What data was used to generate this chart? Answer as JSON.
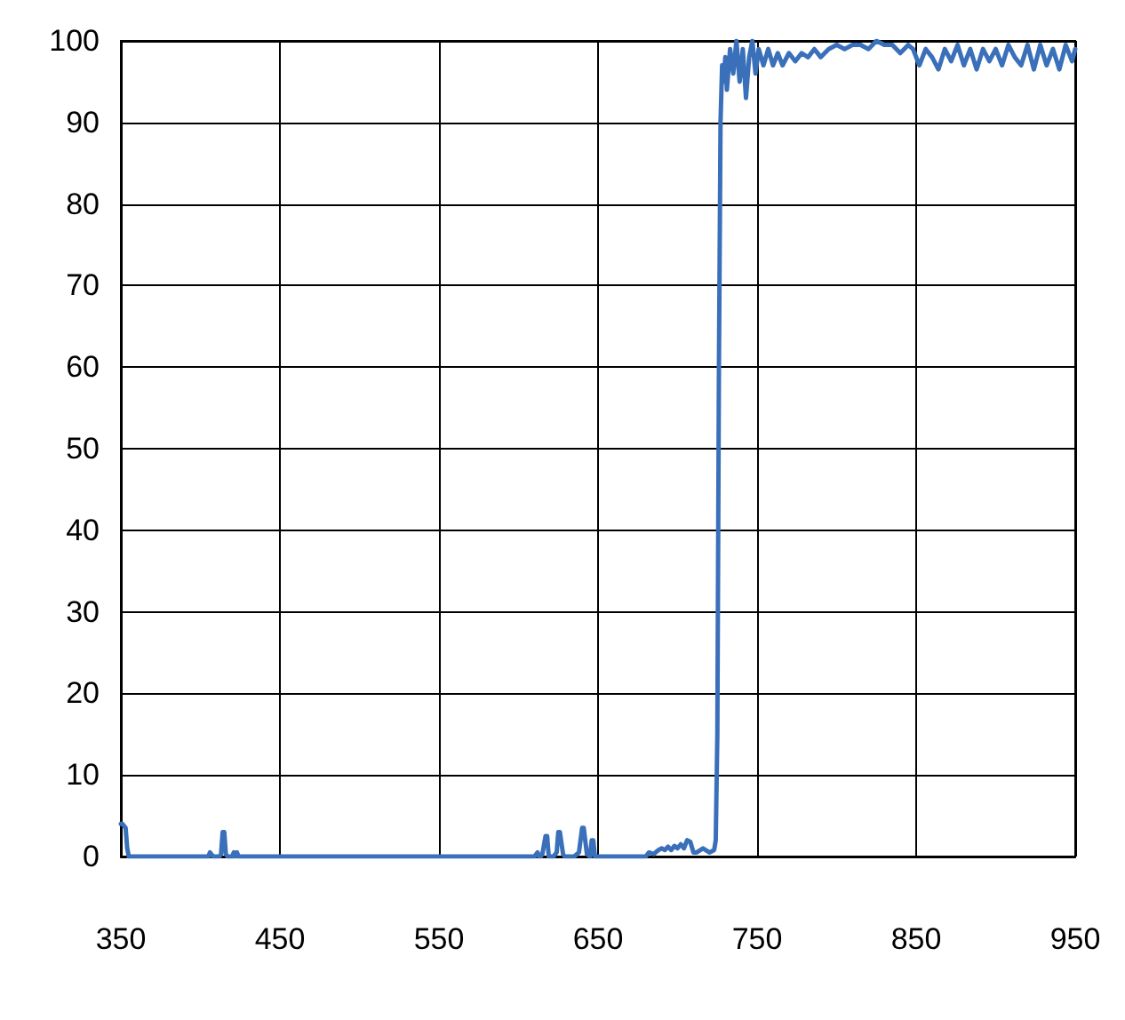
{
  "chart_data": {
    "type": "line",
    "xlim": [
      350,
      950
    ],
    "xticks": [
      350,
      450,
      550,
      650,
      750,
      850,
      950
    ],
    "ylim": [
      0,
      100
    ],
    "yticks": [
      0,
      10,
      20,
      30,
      40,
      50,
      60,
      70,
      80,
      90,
      100
    ],
    "grid": true,
    "marker": "none",
    "line_style": "solid",
    "series": [
      {
        "color": "#3a6fba",
        "x": [
          350,
          351,
          353,
          354,
          355,
          356,
          400,
          405,
          406,
          408,
          410,
          412,
          413,
          414,
          415,
          416,
          417,
          420,
          421,
          422,
          423,
          424,
          425,
          610,
          612,
          613,
          614,
          615,
          617,
          618,
          619,
          622,
          624,
          625,
          626,
          628,
          629,
          630,
          635,
          638,
          640,
          641,
          643,
          645,
          646,
          647,
          648,
          680,
          682,
          685,
          688,
          690,
          692,
          694,
          696,
          698,
          700,
          702,
          704,
          706,
          708,
          710,
          712,
          716,
          720,
          723,
          724,
          725,
          726,
          727,
          728,
          729,
          730,
          731,
          733,
          735,
          737,
          739,
          741,
          743,
          745,
          747,
          749,
          751,
          754,
          757,
          760,
          763,
          766,
          770,
          774,
          778,
          782,
          786,
          790,
          795,
          800,
          805,
          810,
          815,
          820,
          825,
          830,
          835,
          840,
          845,
          848,
          852,
          856,
          860,
          864,
          868,
          872,
          876,
          880,
          884,
          888,
          892,
          896,
          900,
          904,
          908,
          912,
          916,
          920,
          924,
          928,
          932,
          936,
          940,
          944,
          948,
          950
        ],
        "values": [
          4,
          4,
          3.5,
          1,
          0,
          0,
          0,
          0,
          0.5,
          0,
          0,
          0,
          0.3,
          3,
          3,
          0.3,
          0,
          0,
          0.5,
          0,
          0.5,
          0,
          0,
          0,
          0.5,
          0,
          0,
          0.3,
          2.5,
          2.5,
          0,
          0,
          0.5,
          3,
          3,
          0.3,
          0,
          0,
          0,
          0.5,
          3.5,
          3.5,
          0.3,
          0,
          2,
          2,
          0,
          0,
          0.5,
          0.3,
          0.8,
          1,
          0.8,
          1.2,
          0.8,
          1.3,
          1,
          1.5,
          1,
          2,
          1.8,
          0.5,
          0.5,
          1,
          0.5,
          0.8,
          2,
          15,
          60,
          90,
          97,
          95,
          98,
          94,
          99,
          96,
          100,
          95,
          99,
          93,
          98,
          100,
          96,
          99,
          97,
          99,
          97,
          98.5,
          97,
          98.5,
          97.5,
          98.5,
          98,
          99,
          98,
          99,
          99.5,
          99,
          99.5,
          99.5,
          99,
          100,
          99.5,
          99.5,
          98.5,
          99.5,
          99,
          97,
          99,
          98,
          96.5,
          99,
          97.5,
          99.5,
          97,
          99,
          96.5,
          99,
          97.5,
          99,
          97,
          99.5,
          98,
          97,
          99.5,
          96.5,
          99.5,
          97,
          99,
          96.5,
          99.5,
          97.5,
          99
        ]
      }
    ]
  }
}
